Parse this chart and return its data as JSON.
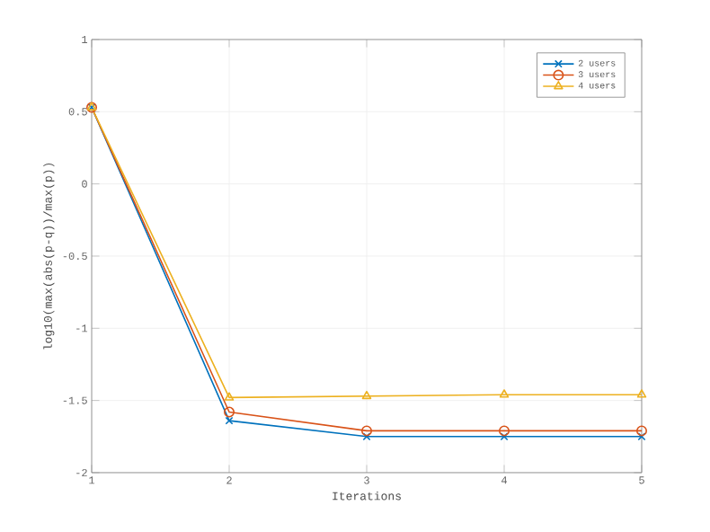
{
  "chart_data": {
    "type": "line",
    "xlabel": "Iterations",
    "ylabel": "log10(max(abs(p-q))/max(p))",
    "x": [
      1,
      2,
      3,
      4,
      5
    ],
    "series": [
      {
        "name": "2 users",
        "color": "#0072bd",
        "marker": "cross",
        "values": [
          0.53,
          -1.64,
          -1.75,
          -1.75,
          -1.75
        ]
      },
      {
        "name": "3 users",
        "color": "#d95319",
        "marker": "circle",
        "values": [
          0.53,
          -1.58,
          -1.71,
          -1.71,
          -1.71
        ]
      },
      {
        "name": "4 users",
        "color": "#edb120",
        "marker": "triangle",
        "values": [
          0.53,
          -1.48,
          -1.47,
          -1.46,
          -1.46
        ]
      }
    ],
    "xlim": [
      1,
      5
    ],
    "ylim": [
      -2,
      1
    ],
    "xticks": [
      1,
      2,
      3,
      4,
      5
    ],
    "yticks": [
      -2,
      -1.5,
      -1,
      -0.5,
      0,
      0.5,
      1
    ],
    "grid": true,
    "legend": "top right",
    "line_style": "solid"
  }
}
